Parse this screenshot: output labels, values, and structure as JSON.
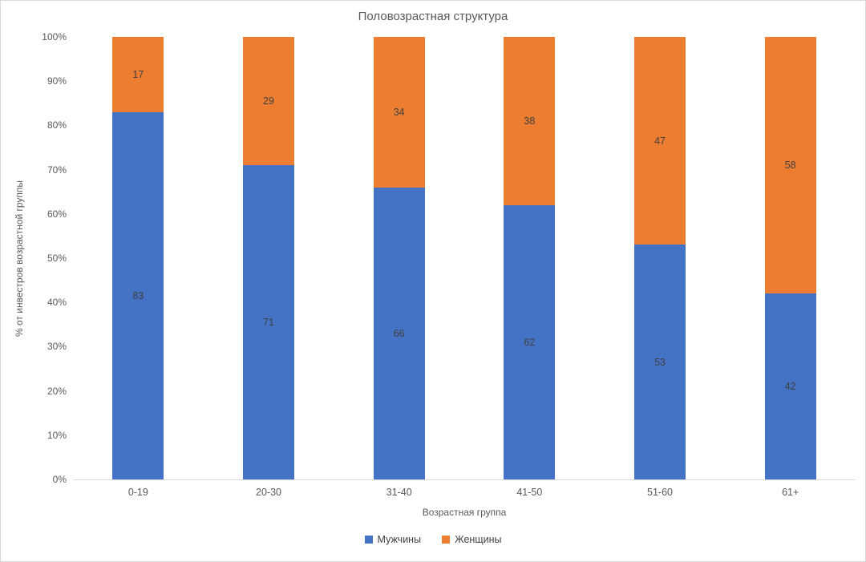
{
  "chart_data": {
    "type": "bar",
    "stacked": true,
    "percent_stacked": true,
    "title": "Половозрастная структура",
    "xlabel": "Возрастная группа",
    "ylabel": "% от инвестров возрастной группы",
    "categories": [
      "0-19",
      "20-30",
      "31-40",
      "41-50",
      "51-60",
      "61+"
    ],
    "series": [
      {
        "name": "Мужчины",
        "color": "#4472C4",
        "values": [
          83,
          71,
          66,
          62,
          53,
          42
        ]
      },
      {
        "name": "Женщины",
        "color": "#ED7D31",
        "values": [
          17,
          29,
          34,
          38,
          47,
          58
        ]
      }
    ],
    "y_ticks": [
      "0%",
      "10%",
      "20%",
      "30%",
      "40%",
      "50%",
      "60%",
      "70%",
      "80%",
      "90%",
      "100%"
    ],
    "ylim": [
      0,
      100
    ],
    "grid": false,
    "legend_position": "bottom"
  },
  "colors": {
    "background": "#ffffff",
    "border": "#d9d9d9",
    "axis_line": "#d9d9d9",
    "axis_text": "#595959",
    "data_label_text": "#404040",
    "series_male": "#4472C4",
    "series_female": "#ED7D31"
  }
}
